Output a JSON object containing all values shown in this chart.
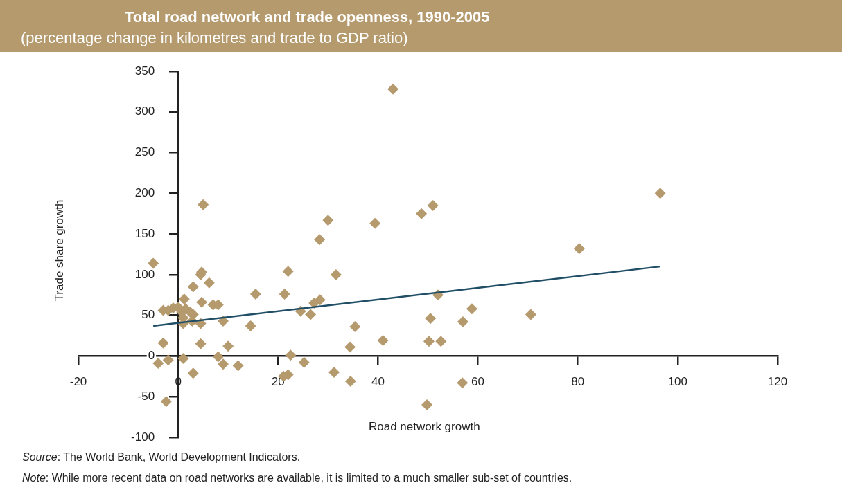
{
  "chart_data": {
    "type": "scatter",
    "title": "Total road network and trade openness, 1990-2005",
    "subtitle": "(percentage change in kilometres and trade to GDP ratio)",
    "xlabel": "Road network growth",
    "ylabel": "Trade share growth",
    "xlim": [
      -20,
      120
    ],
    "xticks": [
      -20,
      0,
      20,
      40,
      60,
      80,
      100,
      120
    ],
    "ylim": [
      -100,
      350
    ],
    "yticks": [
      -100,
      -50,
      0,
      50,
      100,
      150,
      200,
      250,
      300,
      350
    ],
    "marker": "diamond",
    "grid": false,
    "legend": false,
    "series": [
      {
        "type": "scatter",
        "color": "#b59a6e",
        "x": [
          -5,
          -3,
          -2,
          -1,
          0,
          0.7,
          1.5,
          2.4,
          3,
          1,
          2.8,
          1,
          1.2,
          3,
          4.7,
          4.5,
          6.2,
          4.7,
          7,
          8,
          4.5,
          9,
          -3,
          4.5,
          10,
          -4,
          -2,
          1,
          8,
          9,
          12,
          3,
          -2.4,
          5,
          15.5,
          14.5,
          22,
          21.3,
          24.5,
          26.5,
          27.2,
          28.4,
          28.3,
          30,
          31.6,
          35.4,
          34.4,
          41,
          39.4,
          48.7,
          51,
          52,
          50.5,
          50.2,
          52.6,
          57,
          58.8,
          22.5,
          25.2,
          22,
          21.1,
          31.2,
          34.5,
          56.9,
          49.8,
          70.6,
          80.3,
          96.5,
          43
        ],
        "values": [
          114,
          56,
          56,
          59,
          60,
          54,
          58,
          54,
          51,
          47,
          43,
          40,
          70,
          85,
          103,
          100,
          90,
          66,
          63,
          63,
          40,
          43,
          16,
          15,
          12,
          -9,
          -5,
          -3,
          -1,
          -10,
          -12,
          -21,
          -56,
          186,
          76,
          37,
          104,
          76,
          55,
          51,
          65,
          69,
          143,
          167,
          100,
          36,
          11,
          19,
          163,
          175,
          185,
          75,
          46,
          18,
          18,
          42,
          58,
          1,
          -8,
          -23,
          -25,
          -20,
          -31,
          -33,
          -60,
          51,
          132,
          200,
          328
        ]
      },
      {
        "type": "line",
        "color": "#1f4e66",
        "line_style": "solid",
        "marker": "none",
        "x": [
          -5,
          96.5
        ],
        "values": [
          37,
          110
        ]
      }
    ],
    "annotations": [
      "Source: The World Bank, World Development Indicators.",
      "Note: While more recent data on road networks are available, it is limited to a much smaller sub-set of countries."
    ]
  }
}
